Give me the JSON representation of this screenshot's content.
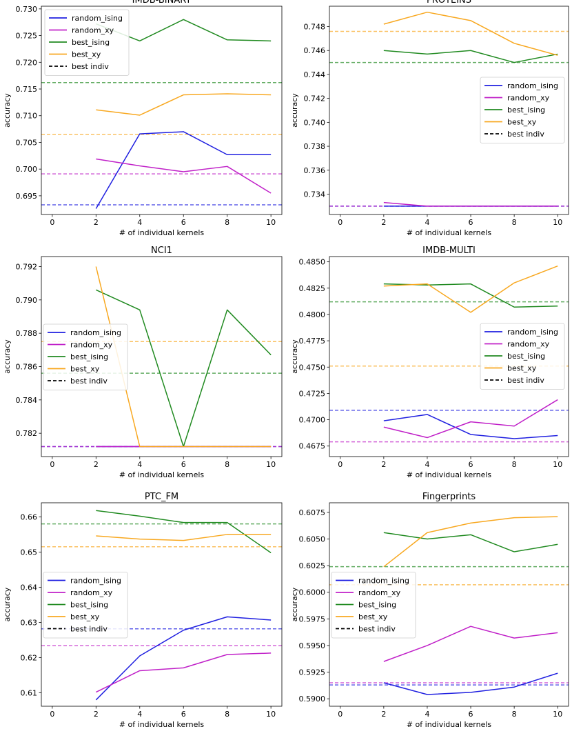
{
  "colors": {
    "random_ising": "#1f1fe0",
    "random_xy": "#c020c8",
    "best_ising": "#208a20",
    "best_xy": "#f8a820",
    "best_indiv": "#000000"
  },
  "chart_data": [
    {
      "type": "line",
      "title": "IMDB-BINARY",
      "xlabel": "# of individual kernels",
      "ylabel": "accuracy",
      "xlim": [
        -0.5,
        10.5
      ],
      "ylim": [
        0.6915,
        0.7305
      ],
      "xticks": [
        "0",
        "2",
        "4",
        "6",
        "8",
        "10"
      ],
      "yticks": [
        "0.695",
        "0.700",
        "0.705",
        "0.710",
        "0.715",
        "0.720",
        "0.725",
        "0.730"
      ],
      "legend": {
        "position": "upper-left",
        "labels": [
          "random_ising",
          "random_xy",
          "best_ising",
          "best_xy",
          "best indiv"
        ]
      },
      "x": [
        2,
        4,
        6,
        8,
        10
      ],
      "series": [
        {
          "name": "random_ising",
          "values": [
            0.6926,
            0.7066,
            0.707,
            0.7027,
            0.7027
          ],
          "baseline": 0.6933
        },
        {
          "name": "random_xy",
          "values": [
            0.7019,
            0.7006,
            0.6995,
            0.7005,
            0.6955
          ],
          "baseline": 0.6991
        },
        {
          "name": "best_ising",
          "values": [
            0.7272,
            0.724,
            0.728,
            0.7242,
            0.724
          ],
          "baseline": 0.7162
        },
        {
          "name": "best_xy",
          "values": [
            0.7111,
            0.7101,
            0.7139,
            0.7141,
            0.7139
          ],
          "baseline": 0.7065
        }
      ]
    },
    {
      "type": "line",
      "title": "PROTEINS",
      "xlabel": "# of individual kernels",
      "ylabel": "accuracy",
      "xlim": [
        -0.5,
        10.5
      ],
      "ylim": [
        0.7323,
        0.7497
      ],
      "xticks": [
        "0",
        "2",
        "4",
        "6",
        "8",
        "10"
      ],
      "yticks": [
        "0.734",
        "0.736",
        "0.738",
        "0.740",
        "0.742",
        "0.744",
        "0.746",
        "0.748"
      ],
      "legend": {
        "position": "center-right",
        "labels": [
          "random_ising",
          "random_xy",
          "best_ising",
          "best_xy",
          "best indiv"
        ]
      },
      "x": [
        2,
        4,
        6,
        8,
        10
      ],
      "series": [
        {
          "name": "random_ising",
          "values": [
            0.733,
            0.733,
            0.733,
            0.733,
            0.733
          ],
          "baseline": 0.733
        },
        {
          "name": "random_xy",
          "values": [
            0.7333,
            0.733,
            0.733,
            0.733,
            0.733
          ],
          "baseline": 0.733
        },
        {
          "name": "best_ising",
          "values": [
            0.746,
            0.7457,
            0.746,
            0.745,
            0.7457
          ],
          "baseline": 0.745
        },
        {
          "name": "best_xy",
          "values": [
            0.7482,
            0.7492,
            0.7485,
            0.7466,
            0.7456
          ],
          "baseline": 0.7476
        }
      ]
    },
    {
      "type": "line",
      "title": "NCI1",
      "xlabel": "# of individual kernels",
      "ylabel": "accuracy",
      "xlim": [
        -0.5,
        10.5
      ],
      "ylim": [
        0.7806,
        0.7926
      ],
      "xticks": [
        "0",
        "2",
        "4",
        "6",
        "8",
        "10"
      ],
      "yticks": [
        "0.782",
        "0.784",
        "0.786",
        "0.788",
        "0.790",
        "0.792"
      ],
      "legend": {
        "position": "center-left",
        "labels": [
          "random_ising",
          "random_xy",
          "best_ising",
          "best_xy",
          "best indiv"
        ]
      },
      "x": [
        2,
        4,
        6,
        8,
        10
      ],
      "series": [
        {
          "name": "random_ising",
          "values": [
            0.7812,
            0.7812,
            0.7812,
            0.7812,
            0.7812
          ],
          "baseline": 0.7812
        },
        {
          "name": "random_xy",
          "values": [
            0.7812,
            0.7812,
            0.7812,
            0.7812,
            0.7812
          ],
          "baseline": 0.7812
        },
        {
          "name": "best_ising",
          "values": [
            0.7906,
            0.7894,
            0.7812,
            0.7894,
            0.7867
          ],
          "baseline": 0.7856
        },
        {
          "name": "best_xy",
          "values": [
            0.792,
            0.7812,
            0.7812,
            0.7812,
            0.7812
          ],
          "baseline": 0.7875
        }
      ]
    },
    {
      "type": "line",
      "title": "IMDB-MULTI",
      "xlabel": "# of individual kernels",
      "ylabel": "accuracy",
      "xlim": [
        -0.5,
        10.5
      ],
      "ylim": [
        0.4665,
        0.4855
      ],
      "xticks": [
        "0",
        "2",
        "4",
        "6",
        "8",
        "10"
      ],
      "yticks": [
        "0.4675",
        "0.4700",
        "0.4725",
        "0.4750",
        "0.4775",
        "0.4800",
        "0.4825",
        "0.4850"
      ],
      "legend": {
        "position": "center-right",
        "labels": [
          "random_ising",
          "random_xy",
          "best_ising",
          "best_xy",
          "best indiv"
        ]
      },
      "x": [
        2,
        4,
        6,
        8,
        10
      ],
      "series": [
        {
          "name": "random_ising",
          "values": [
            0.4699,
            0.4705,
            0.4686,
            0.4682,
            0.4685
          ],
          "baseline": 0.4709
        },
        {
          "name": "random_xy",
          "values": [
            0.4693,
            0.4683,
            0.4698,
            0.4694,
            0.4719
          ],
          "baseline": 0.4679
        },
        {
          "name": "best_ising",
          "values": [
            0.4829,
            0.4828,
            0.4829,
            0.4807,
            0.4808
          ],
          "baseline": 0.4812
        },
        {
          "name": "best_xy",
          "values": [
            0.4827,
            0.4829,
            0.4802,
            0.483,
            0.4846
          ],
          "baseline": 0.4751
        }
      ]
    },
    {
      "type": "line",
      "title": "PTC_FM",
      "xlabel": "# of individual kernels",
      "ylabel": "accuracy",
      "xlim": [
        -0.5,
        10.5
      ],
      "ylim": [
        0.6062,
        0.664
      ],
      "xticks": [
        "0",
        "2",
        "4",
        "6",
        "8",
        "10"
      ],
      "yticks": [
        "0.61",
        "0.62",
        "0.63",
        "0.64",
        "0.65",
        "0.66"
      ],
      "legend": {
        "position": "center-left",
        "labels": [
          "random_ising",
          "random_xy",
          "best_ising",
          "best_xy",
          "best indiv"
        ]
      },
      "x": [
        2,
        4,
        6,
        8,
        10
      ],
      "series": [
        {
          "name": "random_ising",
          "values": [
            0.608,
            0.6205,
            0.6278,
            0.6316,
            0.6307
          ],
          "baseline": 0.6282
        },
        {
          "name": "random_xy",
          "values": [
            0.6102,
            0.6163,
            0.6171,
            0.6209,
            0.6213
          ],
          "baseline": 0.6234
        },
        {
          "name": "best_ising",
          "values": [
            0.6618,
            0.6602,
            0.6584,
            0.6584,
            0.6498
          ],
          "baseline": 0.658
        },
        {
          "name": "best_xy",
          "values": [
            0.6546,
            0.6537,
            0.6533,
            0.655,
            0.655
          ],
          "baseline": 0.6515
        }
      ]
    },
    {
      "type": "line",
      "title": "Fingerprints",
      "xlabel": "# of individual kernels",
      "ylabel": "accuracy",
      "xlim": [
        -0.5,
        10.5
      ],
      "ylim": [
        0.5893,
        0.6084
      ],
      "xticks": [
        "0",
        "2",
        "4",
        "6",
        "8",
        "10"
      ],
      "yticks": [
        "0.5900",
        "0.5925",
        "0.5950",
        "0.5975",
        "0.6000",
        "0.6025",
        "0.6050",
        "0.6075"
      ],
      "legend": {
        "position": "center-left",
        "labels": [
          "random_ising",
          "random_xy",
          "best_ising",
          "best_xy",
          "best indiv"
        ]
      },
      "x": [
        2,
        4,
        6,
        8,
        10
      ],
      "series": [
        {
          "name": "random_ising",
          "values": [
            0.5915,
            0.5904,
            0.5906,
            0.5911,
            0.5924
          ],
          "baseline": 0.5913
        },
        {
          "name": "random_xy",
          "values": [
            0.5935,
            0.595,
            0.5968,
            0.5957,
            0.5962
          ],
          "baseline": 0.5915
        },
        {
          "name": "best_ising",
          "values": [
            0.6056,
            0.605,
            0.6054,
            0.6038,
            0.6045
          ],
          "baseline": 0.6024
        },
        {
          "name": "best_xy",
          "values": [
            0.6024,
            0.6056,
            0.6065,
            0.607,
            0.6071
          ],
          "baseline": 0.6007
        }
      ]
    }
  ]
}
